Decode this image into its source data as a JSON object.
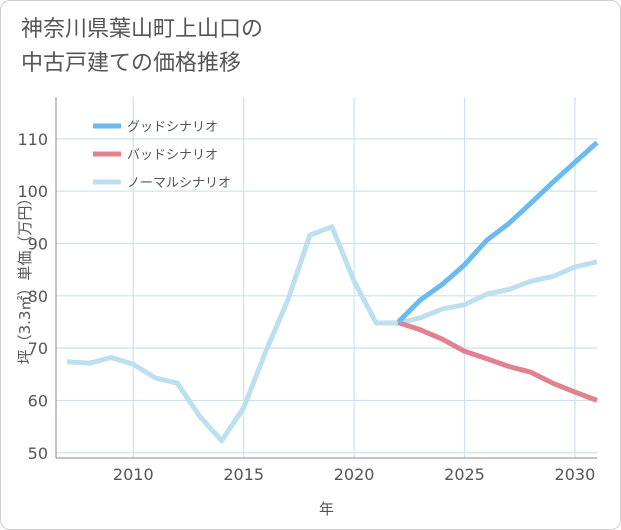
{
  "title": {
    "line1": "神奈川県葉山町上山口の",
    "line2": "中古戸建ての価格推移"
  },
  "colors": {
    "good": "#6bbbf0",
    "bad": "#e0838f",
    "normal": "#bde0ef",
    "grid": "#cbe3ee",
    "axis": "#888888"
  },
  "chart_data": {
    "type": "line",
    "title": "神奈川県葉山町上山口の中古戸建ての価格推移",
    "xlabel": "年",
    "ylabel": "坪（3.3㎡）単価（万円）",
    "xlim": [
      2006.5,
      2031
    ],
    "ylim": [
      49,
      118
    ],
    "xticks": [
      2010,
      2015,
      2020,
      2025,
      2030
    ],
    "yticks": [
      50,
      60,
      70,
      80,
      90,
      100,
      110
    ],
    "grid": true,
    "legend_position": "top-left",
    "series": [
      {
        "name": "グッドシナリオ",
        "key": "good",
        "x": [
          2022,
          2023,
          2024,
          2025,
          2026,
          2027,
          2028,
          2029,
          2030,
          2031
        ],
        "y": [
          75.0,
          79.2,
          82.2,
          85.9,
          90.6,
          93.8,
          97.7,
          101.7,
          105.5,
          109.3
        ]
      },
      {
        "name": "バッドシナリオ",
        "key": "bad",
        "x": [
          2022,
          2023,
          2024,
          2025,
          2026,
          2027,
          2028,
          2029,
          2030,
          2031
        ],
        "y": [
          74.9,
          73.5,
          71.7,
          69.4,
          68.0,
          66.5,
          65.4,
          63.3,
          61.6,
          60.0
        ]
      },
      {
        "name": "ノーマルシナリオ",
        "key": "normal",
        "x": [
          2007,
          2008,
          2009,
          2010,
          2011,
          2012,
          2013,
          2014,
          2015,
          2016,
          2017,
          2018,
          2019,
          2020,
          2021,
          2022,
          2023,
          2024,
          2025,
          2026,
          2027,
          2028,
          2029,
          2030,
          2031
        ],
        "y": [
          67.4,
          67.1,
          68.2,
          66.9,
          64.3,
          63.3,
          57.0,
          52.3,
          58.6,
          69.4,
          79.2,
          91.6,
          93.2,
          82.8,
          74.8,
          74.8,
          75.8,
          77.5,
          78.3,
          80.3,
          81.2,
          82.8,
          83.7,
          85.5,
          86.5
        ]
      }
    ]
  }
}
